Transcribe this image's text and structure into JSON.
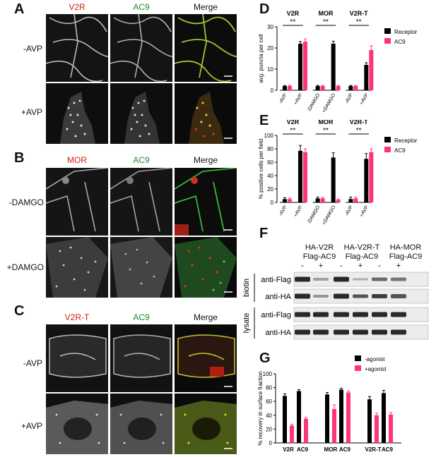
{
  "colors": {
    "receptor": "#000000",
    "ac9": "#ff3377",
    "red_label": "#cc2211",
    "green_label": "#22882b",
    "agonist_minus": "#000000",
    "agonist_plus": "#ff3377"
  },
  "panels": {
    "A": {
      "letter": "A",
      "headers": [
        "V2R",
        "AC9",
        "Merge"
      ],
      "rows": [
        "-AVP",
        "+AVP"
      ]
    },
    "B": {
      "letter": "B",
      "headers": [
        "MOR",
        "AC9",
        "Merge"
      ],
      "rows": [
        "-DAMGO",
        "+DAMGO"
      ]
    },
    "C": {
      "letter": "C",
      "headers": [
        "V2R-T",
        "AC9",
        "Merge"
      ],
      "rows": [
        "-AVP",
        "+AVP"
      ]
    },
    "F": {
      "letter": "F",
      "lane_groups": [
        {
          "line1": "HA-V2R",
          "line2": "Flag-AC9"
        },
        {
          "line1": "HA-V2R-T",
          "line2": "Flag-AC9"
        },
        {
          "line1": "HA-MOR",
          "line2": "Flag-AC9"
        }
      ],
      "lane_signs": [
        "-",
        "+",
        "-",
        "+",
        "-",
        "+"
      ],
      "sections": [
        {
          "name": "biotin",
          "blots": [
            "anti-Flag",
            "anti-HA"
          ]
        },
        {
          "name": "lysate",
          "blots": [
            "anti-Flag",
            "anti-HA"
          ]
        }
      ]
    }
  },
  "chart_data": [
    {
      "panel": "D",
      "type": "bar",
      "ylabel": "avg. puncta per cell",
      "ylim": [
        0,
        30
      ],
      "yticks": [
        "0",
        "10",
        "20",
        "30"
      ],
      "groups": [
        {
          "title": "V2R",
          "conditions": [
            "-AVP",
            "+AVP"
          ],
          "sig": "**"
        },
        {
          "title": "MOR",
          "conditions": [
            "-DAMGO",
            "+DAMGO"
          ],
          "sig": "**"
        },
        {
          "title": "V2R-T",
          "conditions": [
            "-AVP",
            "+AVP"
          ],
          "sig": "**"
        }
      ],
      "series": [
        {
          "name": "Receptor",
          "values": [
            2,
            22,
            2,
            22,
            2,
            12
          ],
          "errors": [
            0.3,
            1,
            0.3,
            1.2,
            0.3,
            1
          ]
        },
        {
          "name": "AC9",
          "values": [
            2,
            23,
            2,
            2,
            2,
            19
          ],
          "errors": [
            0.3,
            1.3,
            0.3,
            0.3,
            0.3,
            2
          ]
        }
      ]
    },
    {
      "panel": "E",
      "type": "bar",
      "ylabel": "% positive cells per field",
      "ylim": [
        0,
        100
      ],
      "yticks": [
        "0",
        "20",
        "40",
        "60",
        "80",
        "100"
      ],
      "groups": [
        {
          "title": "V2R",
          "conditions": [
            "-AVP",
            "+AVP"
          ],
          "sig": "**"
        },
        {
          "title": "MOR",
          "conditions": [
            "-DAMGO",
            "+DAMGO"
          ],
          "sig": "**"
        },
        {
          "title": "V2R-T",
          "conditions": [
            "-AVP",
            "+AVP"
          ],
          "sig": "**"
        }
      ],
      "series": [
        {
          "name": "Receptor",
          "values": [
            5,
            77,
            6,
            67,
            5,
            65
          ],
          "errors": [
            2,
            8,
            2,
            7,
            3,
            8
          ]
        },
        {
          "name": "AC9",
          "values": [
            5,
            75,
            6,
            4,
            6,
            75
          ],
          "errors": [
            1.5,
            5,
            1.5,
            1,
            2,
            5
          ]
        }
      ]
    },
    {
      "panel": "G",
      "type": "bar",
      "ylabel": "% recovery in surface fraction",
      "ylim": [
        0,
        100
      ],
      "yticks": [
        "0",
        "20",
        "40",
        "60",
        "80",
        "100"
      ],
      "categories": [
        "V2R",
        "AC9",
        "MOR",
        "AC9",
        "V2R-T",
        "AC9"
      ],
      "category_line": "V2R  AC9      MOR  AC9      V2R-TAC9",
      "series": [
        {
          "name": "-agonist",
          "values": [
            68,
            75,
            70,
            77,
            63,
            72
          ],
          "errors": [
            3,
            2,
            3,
            2,
            4,
            4
          ]
        },
        {
          "name": "+agonist",
          "values": [
            25,
            35,
            49,
            73,
            40,
            41
          ],
          "errors": [
            2,
            2,
            6,
            2,
            3,
            3
          ]
        }
      ]
    }
  ]
}
